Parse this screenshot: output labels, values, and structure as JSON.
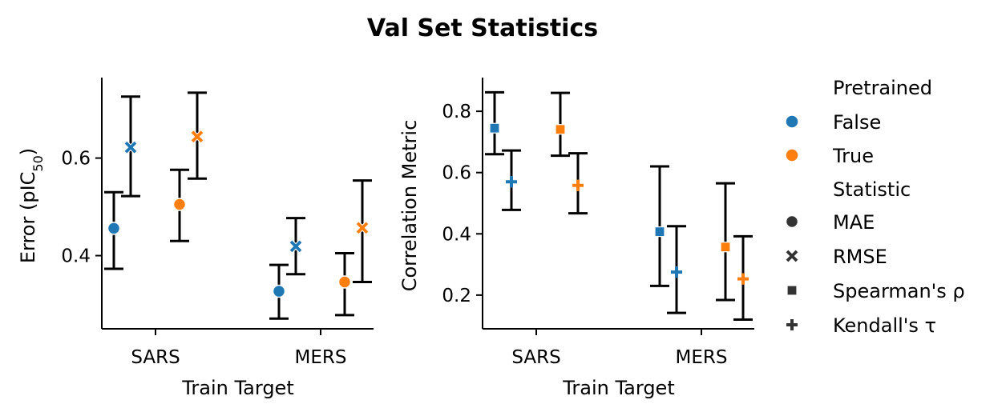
{
  "title": "Val Set Statistics",
  "colors": {
    "False": "#1f77b4",
    "True": "#ff7f0e"
  },
  "legend": {
    "hue_title": "Pretrained",
    "hue_items": [
      {
        "label": "False",
        "color": "#1f77b4"
      },
      {
        "label": "True",
        "color": "#ff7f0e"
      }
    ],
    "style_title": "Statistic",
    "style_items": [
      {
        "label": "MAE",
        "marker": "circle"
      },
      {
        "label": "RMSE",
        "marker": "x"
      },
      {
        "label": "Spearman's ρ",
        "marker": "square"
      },
      {
        "label": "Kendall's τ",
        "marker": "plus"
      }
    ]
  },
  "chart_data": [
    {
      "type": "scatter",
      "xlabel": "Train Target",
      "ylabel": "Error (pIC",
      "ylabel_sub": "50",
      "ylabel_end": ")",
      "categories": [
        "SARS",
        "MERS"
      ],
      "ylim": [
        0.25,
        0.765
      ],
      "yticks": [
        0.4,
        0.6
      ],
      "series": [
        {
          "statistic": "MAE",
          "pretrained": "False",
          "values": [
            0.456,
            0.327
          ],
          "err_low": [
            0.373,
            0.271
          ],
          "err_high": [
            0.53,
            0.381
          ]
        },
        {
          "statistic": "RMSE",
          "pretrained": "False",
          "values": [
            0.622,
            0.419
          ],
          "err_low": [
            0.522,
            0.362
          ],
          "err_high": [
            0.726,
            0.477
          ]
        },
        {
          "statistic": "MAE",
          "pretrained": "True",
          "values": [
            0.505,
            0.346
          ],
          "err_low": [
            0.43,
            0.278
          ],
          "err_high": [
            0.576,
            0.405
          ]
        },
        {
          "statistic": "RMSE",
          "pretrained": "True",
          "values": [
            0.644,
            0.457
          ],
          "err_low": [
            0.558,
            0.346
          ],
          "err_high": [
            0.734,
            0.554
          ]
        }
      ]
    },
    {
      "type": "scatter",
      "xlabel": "Train Target",
      "ylabel": "Correlation Metric",
      "categories": [
        "SARS",
        "MERS"
      ],
      "ylim": [
        0.09,
        0.91
      ],
      "yticks": [
        0.2,
        0.4,
        0.6,
        0.8
      ],
      "series": [
        {
          "statistic": "Spearman's ρ",
          "pretrained": "False",
          "values": [
            0.745,
            0.407
          ],
          "err_low": [
            0.66,
            0.23
          ],
          "err_high": [
            0.862,
            0.62
          ]
        },
        {
          "statistic": "Kendall's τ",
          "pretrained": "False",
          "values": [
            0.57,
            0.275
          ],
          "err_low": [
            0.478,
            0.142
          ],
          "err_high": [
            0.672,
            0.425
          ]
        },
        {
          "statistic": "Spearman's ρ",
          "pretrained": "True",
          "values": [
            0.741,
            0.357
          ],
          "err_low": [
            0.655,
            0.184
          ],
          "err_high": [
            0.86,
            0.565
          ]
        },
        {
          "statistic": "Kendall's τ",
          "pretrained": "True",
          "values": [
            0.558,
            0.253
          ],
          "err_low": [
            0.467,
            0.12
          ],
          "err_high": [
            0.663,
            0.392
          ]
        }
      ]
    }
  ]
}
